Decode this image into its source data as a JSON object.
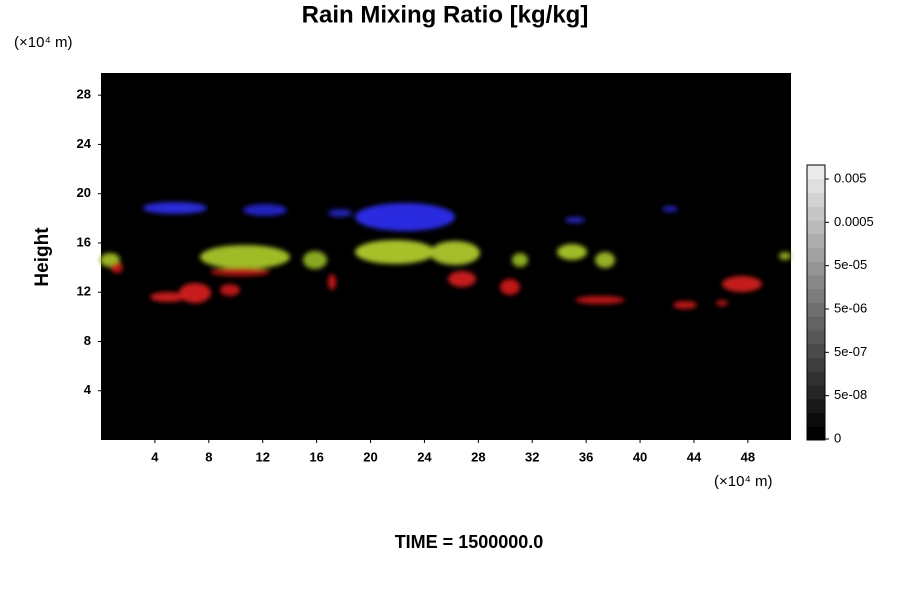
{
  "chart_data": {
    "type": "volume",
    "title": "Rain Mixing Ratio [kg/kg]",
    "y_label": "Height",
    "x_unit": "(×10⁴ m)",
    "y_unit": "(×10⁴ m)",
    "xlim": [
      0,
      51.2
    ],
    "xticks": [
      4,
      8,
      12,
      16,
      20,
      24,
      28,
      32,
      36,
      40,
      44,
      48
    ],
    "ylim": [
      0,
      29.8
    ],
    "yticks": [
      4,
      8,
      12,
      16,
      20,
      24,
      28
    ],
    "colorbar_ticks": [
      {
        "value": 0.005,
        "label": "0.005"
      },
      {
        "value": 0.0005,
        "label": "0.0005"
      },
      {
        "value": 5e-05,
        "label": "5e-05"
      },
      {
        "value": 5e-06,
        "label": "5e-06"
      },
      {
        "value": 5e-07,
        "label": "5e-07"
      },
      {
        "value": 5e-08,
        "label": "5e-08"
      },
      0
    ],
    "time_label": "TIME = 1500000.0"
  }
}
